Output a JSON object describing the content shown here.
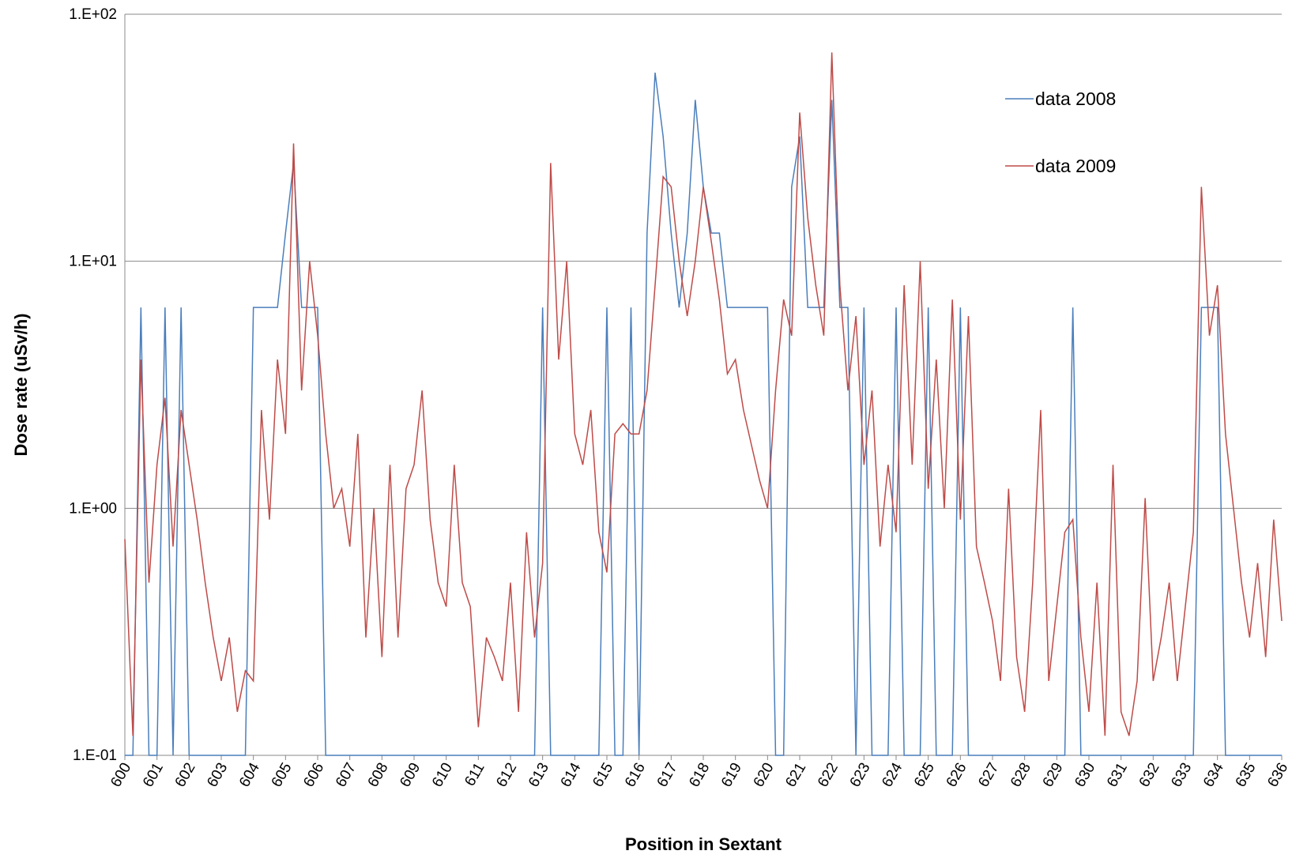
{
  "chart_data": {
    "type": "line",
    "x_label": "Position in Sextant",
    "y_label": "Dose rate (uSv/h)",
    "log_y": true,
    "grid": true,
    "legend_loc": "upper right",
    "xlim": [
      600,
      636
    ],
    "xticks": [
      600,
      601,
      602,
      603,
      604,
      605,
      606,
      607,
      608,
      609,
      610,
      611,
      612,
      613,
      614,
      615,
      616,
      617,
      618,
      619,
      620,
      621,
      622,
      623,
      624,
      625,
      626,
      627,
      628,
      629,
      630,
      631,
      632,
      633,
      634,
      635,
      636
    ],
    "ylim": [
      0.1,
      100
    ],
    "yticks": [
      {
        "value": 0.1,
        "label": "1.E-01"
      },
      {
        "value": 1,
        "label": "1.E+00"
      },
      {
        "value": 10,
        "label": "1.E+01"
      },
      {
        "value": 100,
        "label": "1.E+02"
      }
    ],
    "x": [
      600,
      600.25,
      600.5,
      600.75,
      601,
      601.25,
      601.5,
      601.75,
      602,
      602.25,
      602.5,
      602.75,
      603,
      603.25,
      603.5,
      603.75,
      604,
      604.25,
      604.5,
      604.75,
      605,
      605.25,
      605.5,
      605.75,
      606,
      606.25,
      606.5,
      606.75,
      607,
      607.25,
      607.5,
      607.75,
      608,
      608.25,
      608.5,
      608.75,
      609,
      609.25,
      609.5,
      609.75,
      610,
      610.25,
      610.5,
      610.75,
      611,
      611.25,
      611.5,
      611.75,
      612,
      612.25,
      612.5,
      612.75,
      613,
      613.25,
      613.5,
      613.75,
      614,
      614.25,
      614.5,
      614.75,
      615,
      615.25,
      615.5,
      615.75,
      616,
      616.25,
      616.5,
      616.75,
      617,
      617.25,
      617.5,
      617.75,
      618,
      618.25,
      618.5,
      618.75,
      619,
      619.25,
      619.5,
      619.75,
      620,
      620.25,
      620.5,
      620.75,
      621,
      621.25,
      621.5,
      621.75,
      622,
      622.25,
      622.5,
      622.75,
      623,
      623.25,
      623.5,
      623.75,
      624,
      624.25,
      624.5,
      624.75,
      625,
      625.25,
      625.5,
      625.75,
      626,
      626.25,
      626.5,
      626.75,
      627,
      627.25,
      627.5,
      627.75,
      628,
      628.25,
      628.5,
      628.75,
      629,
      629.25,
      629.5,
      629.75,
      630,
      630.25,
      630.5,
      630.75,
      631,
      631.25,
      631.5,
      631.75,
      632,
      632.25,
      632.5,
      632.75,
      633,
      633.25,
      633.5,
      633.75,
      634,
      634.25,
      634.5,
      634.75,
      635,
      635.25,
      635.5,
      635.75,
      636
    ],
    "series": [
      {
        "name": "data 2008",
        "color": "#4a7ebb",
        "values": [
          0.1,
          0.1,
          6.5,
          0.1,
          0.1,
          6.5,
          0.1,
          6.5,
          0.1,
          0.1,
          0.1,
          0.1,
          0.1,
          0.1,
          0.1,
          0.1,
          6.5,
          6.5,
          6.5,
          6.5,
          13,
          25,
          6.5,
          6.5,
          6.5,
          0.1,
          0.1,
          0.1,
          0.1,
          0.1,
          0.1,
          0.1,
          0.1,
          0.1,
          0.1,
          0.1,
          0.1,
          0.1,
          0.1,
          0.1,
          0.1,
          0.1,
          0.1,
          0.1,
          0.1,
          0.1,
          0.1,
          0.1,
          0.1,
          0.1,
          0.1,
          0.1,
          6.5,
          0.1,
          0.1,
          0.1,
          0.1,
          0.1,
          0.1,
          0.1,
          6.5,
          0.1,
          0.1,
          6.5,
          0.1,
          13,
          58,
          32,
          13,
          6.5,
          13,
          45,
          20,
          13,
          13,
          6.5,
          6.5,
          6.5,
          6.5,
          6.5,
          6.5,
          0.1,
          0.1,
          20,
          32,
          6.5,
          6.5,
          6.5,
          45,
          6.5,
          6.5,
          0.1,
          6.5,
          0.1,
          0.1,
          0.1,
          6.5,
          0.1,
          0.1,
          0.1,
          6.5,
          0.1,
          0.1,
          0.1,
          6.5,
          0.1,
          0.1,
          0.1,
          0.1,
          0.1,
          0.1,
          0.1,
          0.1,
          0.1,
          0.1,
          0.1,
          0.1,
          0.1,
          6.5,
          0.1,
          0.1,
          0.1,
          0.1,
          0.1,
          0.1,
          0.1,
          0.1,
          0.1,
          0.1,
          0.1,
          0.1,
          0.1,
          0.1,
          0.1,
          6.5,
          6.5,
          6.5,
          0.1,
          0.1,
          0.1,
          0.1,
          0.1,
          0.1,
          0.1,
          0.1
        ]
      },
      {
        "name": "data 2009",
        "color": "#be4b48",
        "values": [
          0.75,
          0.12,
          4,
          0.5,
          1.5,
          2.8,
          0.7,
          2.5,
          1.5,
          0.9,
          0.5,
          0.3,
          0.2,
          0.3,
          0.15,
          0.22,
          0.2,
          2.5,
          0.9,
          4,
          2,
          30,
          3,
          10,
          5,
          2,
          1,
          1.2,
          0.7,
          2,
          0.3,
          1,
          0.25,
          1.5,
          0.3,
          1.2,
          1.5,
          3,
          0.9,
          0.5,
          0.4,
          1.5,
          0.5,
          0.4,
          0.13,
          0.3,
          0.25,
          0.2,
          0.5,
          0.15,
          0.8,
          0.3,
          0.6,
          25,
          4,
          10,
          2,
          1.5,
          2.5,
          0.8,
          0.55,
          2,
          2.2,
          2,
          2,
          3,
          8,
          22,
          20,
          10,
          6,
          10,
          20,
          12,
          7,
          3.5,
          4,
          2.5,
          1.8,
          1.3,
          1,
          3,
          7,
          5,
          40,
          15,
          8,
          5,
          70,
          8,
          3,
          6,
          1.5,
          3,
          0.7,
          1.5,
          0.8,
          8,
          1.5,
          10,
          1.2,
          4,
          1,
          7,
          0.9,
          6,
          0.7,
          0.5,
          0.35,
          0.2,
          1.2,
          0.25,
          0.15,
          0.5,
          2.5,
          0.2,
          0.4,
          0.8,
          0.9,
          0.3,
          0.15,
          0.5,
          0.12,
          1.5,
          0.15,
          0.12,
          0.2,
          1.1,
          0.2,
          0.3,
          0.5,
          0.2,
          0.4,
          0.8,
          20,
          5,
          8,
          2,
          1,
          0.5,
          0.3,
          0.6,
          0.25,
          0.9,
          0.35
        ]
      }
    ]
  }
}
